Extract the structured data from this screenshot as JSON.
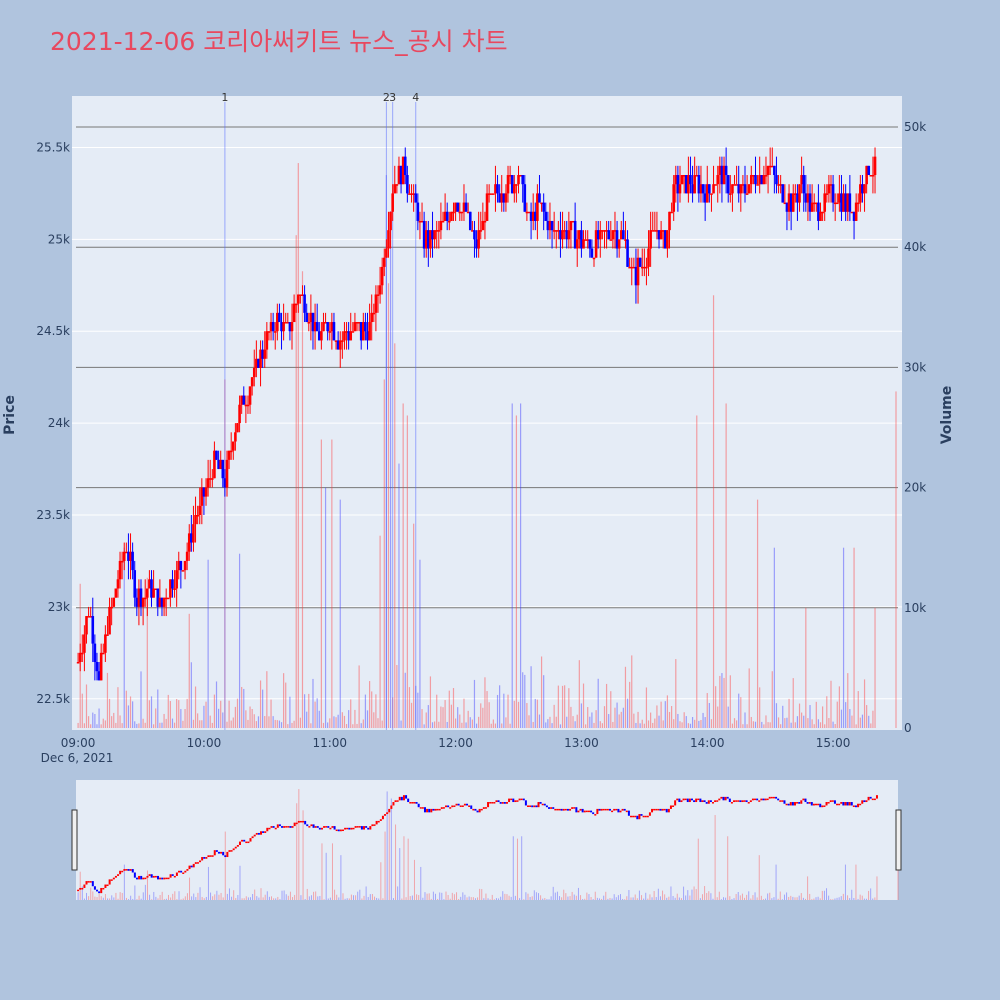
{
  "chart_data": {
    "type": "candlestick",
    "title": "2021-12-06 코리아써키트 뉴스_공시 차트",
    "ylabel_left": "Price",
    "ylabel_right": "Volume",
    "x_ticks": [
      "09:00",
      "10:00",
      "11:00",
      "12:00",
      "13:00",
      "14:00",
      "15:00"
    ],
    "x_date_label": "Dec 6, 2021",
    "price_ticks": [
      "22.5k",
      "23k",
      "23.5k",
      "24k",
      "24.5k",
      "25k",
      "25.5k"
    ],
    "price_range": [
      22330,
      25780
    ],
    "volume_ticks": [
      "0",
      "10k",
      "20k",
      "30k",
      "40k",
      "50k"
    ],
    "volume_range": [
      0,
      50000
    ],
    "news_markers": [
      {
        "label": "1",
        "time": "10:10"
      },
      {
        "label": "2",
        "time": "11:27"
      },
      {
        "label": "3",
        "time": "11:30"
      },
      {
        "label": "4",
        "time": "11:41"
      }
    ],
    "price_path": [
      [
        "09:00",
        22700
      ],
      [
        "09:05",
        23000
      ],
      [
        "09:10",
        22600
      ],
      [
        "09:15",
        22950
      ],
      [
        "09:20",
        23200
      ],
      [
        "09:23",
        23350
      ],
      [
        "09:28",
        23050
      ],
      [
        "09:35",
        23100
      ],
      [
        "09:40",
        23000
      ],
      [
        "09:45",
        23150
      ],
      [
        "09:50",
        23250
      ],
      [
        "09:55",
        23450
      ],
      [
        "10:00",
        23600
      ],
      [
        "10:05",
        23800
      ],
      [
        "10:10",
        23700
      ],
      [
        "10:15",
        24000
      ],
      [
        "10:20",
        24150
      ],
      [
        "10:25",
        24300
      ],
      [
        "10:30",
        24450
      ],
      [
        "10:35",
        24550
      ],
      [
        "10:40",
        24500
      ],
      [
        "10:45",
        24700
      ],
      [
        "10:50",
        24600
      ],
      [
        "10:55",
        24450
      ],
      [
        "11:00",
        24550
      ],
      [
        "11:05",
        24450
      ],
      [
        "11:10",
        24500
      ],
      [
        "11:15",
        24500
      ],
      [
        "11:20",
        24550
      ],
      [
        "11:25",
        24850
      ],
      [
        "11:28",
        25100
      ],
      [
        "11:30",
        25300
      ],
      [
        "11:35",
        25400
      ],
      [
        "11:40",
        25200
      ],
      [
        "11:45",
        25000
      ],
      [
        "11:50",
        25000
      ],
      [
        "11:55",
        25100
      ],
      [
        "12:00",
        25200
      ],
      [
        "12:05",
        25150
      ],
      [
        "12:10",
        24950
      ],
      [
        "12:15",
        25200
      ],
      [
        "12:20",
        25250
      ],
      [
        "12:25",
        25300
      ],
      [
        "12:30",
        25350
      ],
      [
        "12:35",
        25100
      ],
      [
        "12:40",
        25200
      ],
      [
        "12:45",
        25050
      ],
      [
        "12:50",
        25050
      ],
      [
        "13:00",
        25000
      ],
      [
        "13:05",
        24950
      ],
      [
        "13:10",
        25000
      ],
      [
        "13:15",
        25050
      ],
      [
        "13:20",
        25000
      ],
      [
        "13:25",
        24800
      ],
      [
        "13:30",
        24900
      ],
      [
        "13:35",
        25050
      ],
      [
        "13:40",
        25000
      ],
      [
        "13:45",
        25300
      ],
      [
        "13:50",
        25300
      ],
      [
        "13:55",
        25300
      ],
      [
        "14:00",
        25250
      ],
      [
        "14:05",
        25350
      ],
      [
        "14:10",
        25300
      ],
      [
        "14:15",
        25250
      ],
      [
        "14:20",
        25300
      ],
      [
        "14:25",
        25350
      ],
      [
        "14:30",
        25400
      ],
      [
        "14:35",
        25250
      ],
      [
        "14:40",
        25200
      ],
      [
        "14:45",
        25300
      ],
      [
        "14:50",
        25150
      ],
      [
        "14:55",
        25200
      ],
      [
        "15:00",
        25250
      ],
      [
        "15:05",
        25200
      ],
      [
        "15:10",
        25150
      ],
      [
        "15:15",
        25350
      ],
      [
        "15:20",
        25400
      ]
    ],
    "volume_spikes": [
      [
        "09:01",
        12000,
        "up"
      ],
      [
        "09:22",
        15000,
        "down"
      ],
      [
        "09:33",
        12500,
        "up"
      ],
      [
        "09:53",
        9500,
        "up"
      ],
      [
        "10:02",
        14000,
        "down"
      ],
      [
        "10:10",
        29000,
        "up"
      ],
      [
        "10:17",
        14500,
        "down"
      ],
      [
        "10:44",
        41000,
        "up"
      ],
      [
        "10:45",
        47000,
        "up"
      ],
      [
        "10:47",
        38000,
        "up"
      ],
      [
        "10:56",
        24000,
        "up"
      ],
      [
        "10:58",
        20000,
        "down"
      ],
      [
        "11:01",
        24000,
        "up"
      ],
      [
        "11:05",
        19000,
        "down"
      ],
      [
        "11:24",
        16000,
        "up"
      ],
      [
        "11:26",
        29000,
        "up"
      ],
      [
        "11:27",
        46000,
        "down"
      ],
      [
        "11:28",
        37000,
        "up"
      ],
      [
        "11:29",
        43000,
        "down"
      ],
      [
        "11:31",
        32000,
        "up"
      ],
      [
        "11:33",
        22000,
        "down"
      ],
      [
        "11:35",
        27000,
        "up"
      ],
      [
        "11:37",
        26000,
        "up"
      ],
      [
        "11:40",
        17000,
        "up"
      ],
      [
        "11:43",
        14000,
        "down"
      ],
      [
        "12:27",
        27000,
        "down"
      ],
      [
        "12:29",
        26000,
        "up"
      ],
      [
        "12:31",
        27000,
        "down"
      ],
      [
        "13:55",
        26000,
        "up"
      ],
      [
        "14:03",
        36000,
        "up"
      ],
      [
        "14:09",
        27000,
        "up"
      ],
      [
        "14:24",
        19000,
        "up"
      ],
      [
        "14:32",
        15000,
        "down"
      ],
      [
        "14:47",
        10000,
        "up"
      ],
      [
        "15:05",
        15000,
        "down"
      ],
      [
        "15:10",
        15000,
        "up"
      ],
      [
        "15:20",
        10000,
        "up"
      ],
      [
        "15:30",
        28000,
        "up"
      ]
    ]
  }
}
